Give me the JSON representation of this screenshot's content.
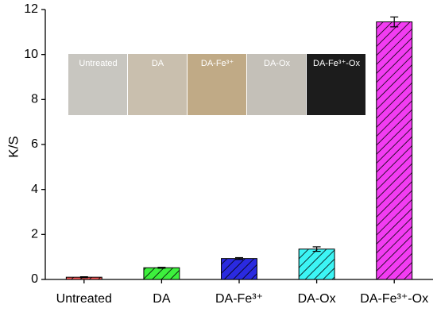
{
  "chart_data": {
    "type": "bar",
    "y_label": "K/S",
    "categories": [
      "Untreated",
      "DA",
      "DA-Fe³⁺",
      "DA-Ox",
      "DA-Fe³⁺-Ox"
    ],
    "values": [
      0.1,
      0.52,
      0.93,
      1.35,
      11.45
    ],
    "errors": [
      0.02,
      0.02,
      0.04,
      0.1,
      0.22
    ],
    "colors": [
      "#ff5a5a",
      "#3df03d",
      "#2a2ae0",
      "#3cf5f5",
      "#f23cf2"
    ],
    "hatch": true,
    "ylim": [
      0,
      12
    ],
    "yticks": [
      0,
      2,
      4,
      6,
      8,
      10,
      12
    ],
    "inset": {
      "labels": [
        "Untreated",
        "DA",
        "DA-Fe³⁺",
        "DA-Ox",
        "DA-Fe³⁺-Ox"
      ],
      "colors": [
        "#c8c6c0",
        "#c9bfae",
        "#c0aa86",
        "#c4c0b8",
        "#1c1c1c"
      ]
    }
  }
}
